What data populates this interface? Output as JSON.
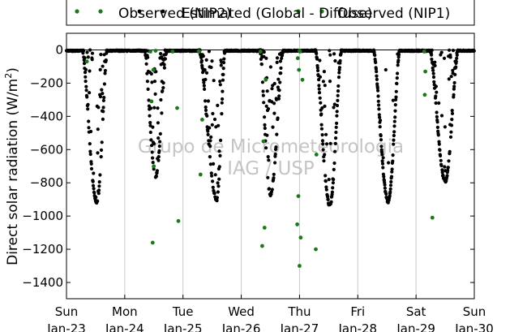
{
  "chart_data": {
    "type": "scatter",
    "ylabel": "Direct solar radiation (W/m²)",
    "ylabel_prefix": "Direct solar radiation (W/m",
    "ylabel_sup": "2",
    "ylabel_suffix": ")",
    "ylim": [
      -1500,
      80
    ],
    "xlim": [
      0,
      7
    ],
    "yticks": [
      0,
      -200,
      -400,
      -600,
      -800,
      -1000,
      -1200,
      -1400
    ],
    "xticks": [
      {
        "x": 0,
        "day": "Sun",
        "date": "Jan-23"
      },
      {
        "x": 1,
        "day": "Mon",
        "date": "Jan-24"
      },
      {
        "x": 2,
        "day": "Tue",
        "date": "Jan-25"
      },
      {
        "x": 3,
        "day": "Wed",
        "date": "Jan-26"
      },
      {
        "x": 4,
        "day": "Thu",
        "date": "Jan-27"
      },
      {
        "x": 5,
        "day": "Fri",
        "date": "Jan-28"
      },
      {
        "x": 6,
        "day": "Sat",
        "date": "Jan-29"
      },
      {
        "x": 7,
        "day": "Sun",
        "date": "Jan-30"
      }
    ],
    "grid": "vertical",
    "legend_placement": "top, above plot",
    "legend_entries": [
      {
        "label": "Observed (NIP2)",
        "color": "#1a7a1a"
      },
      {
        "label": "Estimated (Global - Diffuse)",
        "color": "#000000"
      },
      {
        "label": "Observed (NIP1)",
        "color": "#1a7a1a"
      }
    ],
    "watermark_lines": [
      "Grupo de Micrometeorologia",
      "IAG / USP"
    ],
    "series": [
      {
        "name": "Estimated (Global - Diffuse)",
        "color": "#000000",
        "days": [
          {
            "start": 0.27,
            "peak": 0.52,
            "end": 0.7,
            "amp": -920,
            "scatter": 0.38
          },
          {
            "start": 1.34,
            "peak": 1.53,
            "end": 1.72,
            "amp": -760,
            "scatter": 0.5
          },
          {
            "start": 2.28,
            "peak": 2.58,
            "end": 2.72,
            "amp": -900,
            "scatter": 0.42
          },
          {
            "start": 3.32,
            "peak": 3.5,
            "end": 3.72,
            "amp": -870,
            "scatter": 0.5
          },
          {
            "start": 4.27,
            "peak": 4.52,
            "end": 4.72,
            "amp": -935,
            "scatter": 0.25
          },
          {
            "start": 5.27,
            "peak": 5.52,
            "end": 5.72,
            "amp": -910,
            "scatter": 0.08
          },
          {
            "start": 6.24,
            "peak": 6.5,
            "end": 6.72,
            "amp": -790,
            "scatter": 0.3
          }
        ]
      },
      {
        "name": "Observed (NIP2)",
        "color": "#1a7a1a",
        "points": [
          [
            0.35,
            -70
          ],
          [
            1.44,
            -10
          ],
          [
            1.49,
            -120
          ],
          [
            1.46,
            -310
          ],
          [
            1.5,
            -700
          ],
          [
            1.48,
            -1160
          ],
          [
            1.82,
            -10
          ],
          [
            1.9,
            -350
          ],
          [
            1.92,
            -1030
          ],
          [
            2.28,
            -10
          ],
          [
            2.3,
            -750
          ],
          [
            2.33,
            -420
          ],
          [
            3.33,
            -10
          ],
          [
            3.36,
            -1180
          ],
          [
            3.4,
            -1070
          ],
          [
            3.38,
            -550
          ],
          [
            3.42,
            -180
          ],
          [
            3.97,
            -50
          ],
          [
            3.99,
            -120
          ],
          [
            4.01,
            -10
          ],
          [
            4.05,
            -180
          ],
          [
            3.98,
            -880
          ],
          [
            3.96,
            -1050
          ],
          [
            4.02,
            -1130
          ],
          [
            4.0,
            -1300
          ],
          [
            4.28,
            -1200
          ],
          [
            4.29,
            -630
          ],
          [
            6.14,
            -10
          ],
          [
            6.16,
            -130
          ],
          [
            6.15,
            -270
          ],
          [
            6.28,
            -1010
          ]
        ]
      },
      {
        "name": "Observed (NIP1)",
        "color": "#1a7a1a",
        "points": [
          [
            1.53,
            -5
          ],
          [
            2.27,
            -8
          ],
          [
            4.0,
            -5
          ]
        ]
      }
    ]
  }
}
